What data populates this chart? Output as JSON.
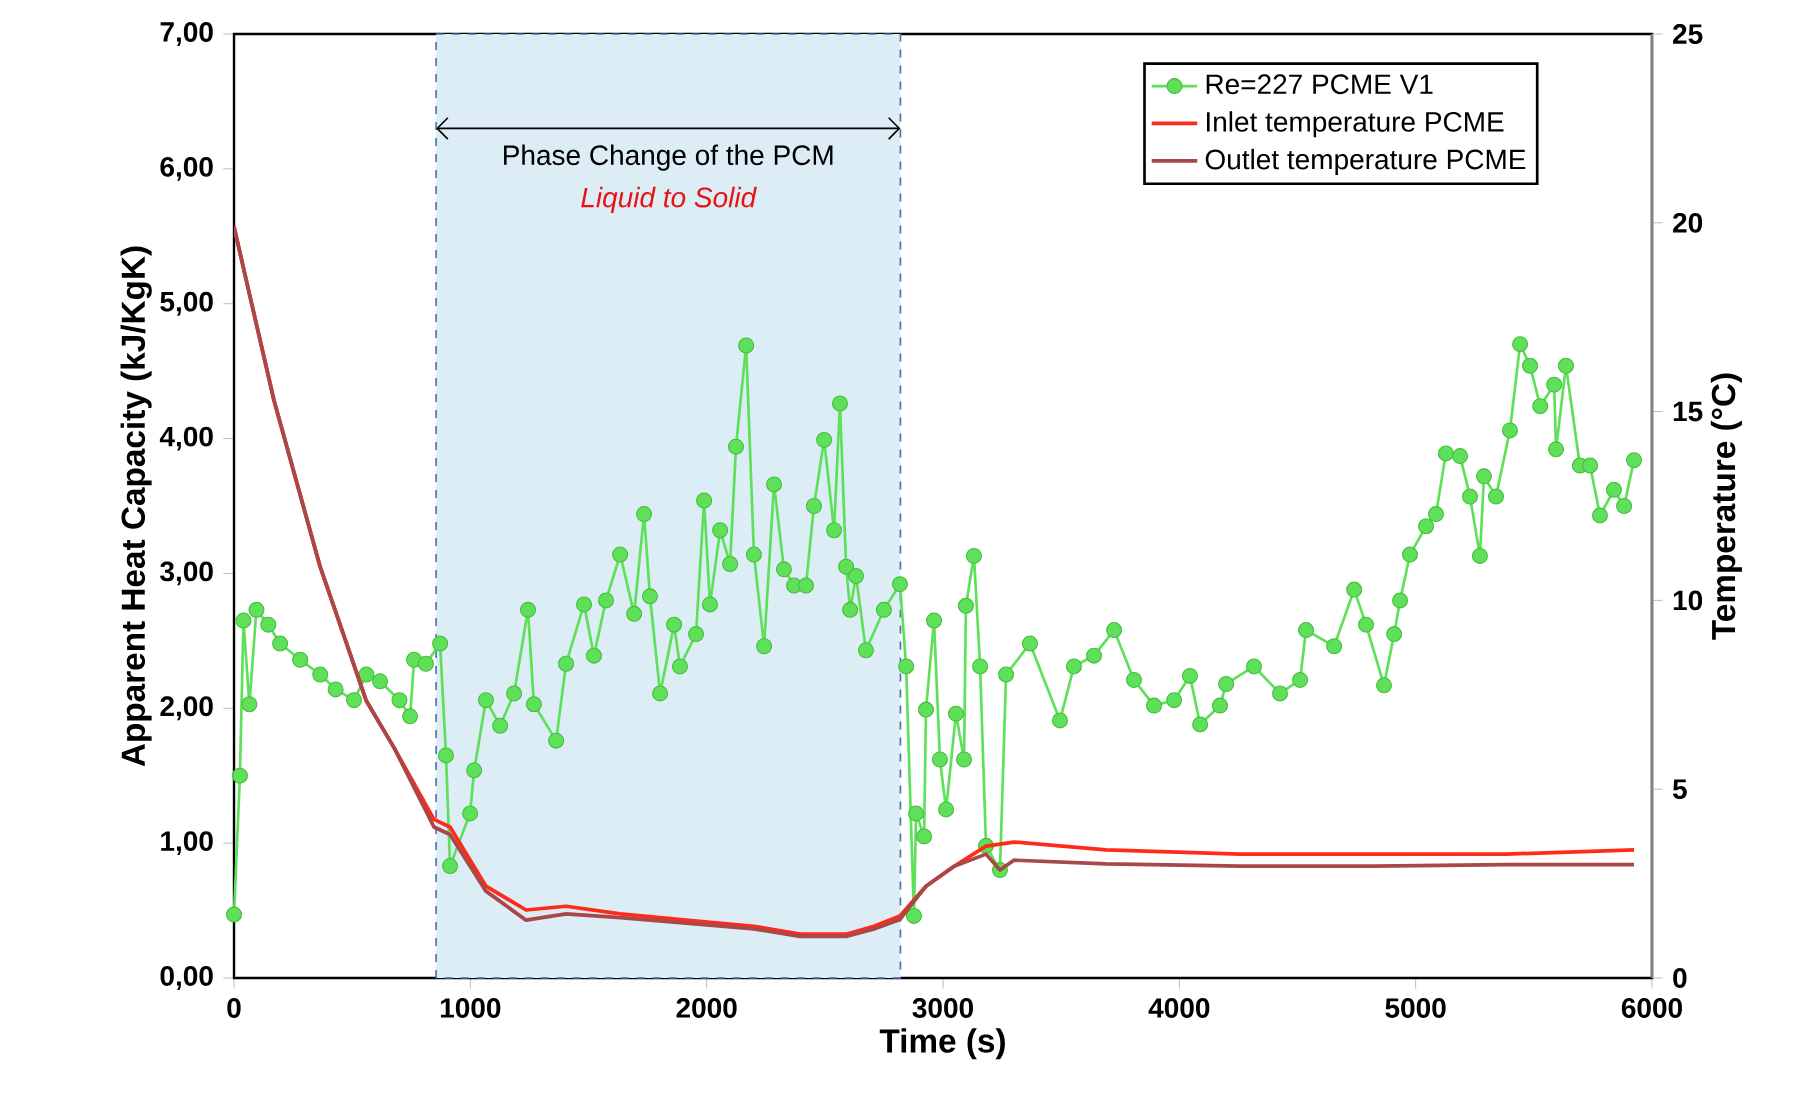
{
  "chart_data": {
    "type": "line",
    "xlabel": "Time (s)",
    "ylabel": "Apparent Heat Capacity (kJ/KgK)",
    "y2label": "Temperature  (°C)",
    "xlim": [
      0,
      6000
    ],
    "xticks": [
      0,
      1000,
      2000,
      3000,
      4000,
      5000,
      6000
    ],
    "ylim": [
      0,
      7
    ],
    "yticks": [
      {
        "value": 0,
        "label": "0,00"
      },
      {
        "value": 1,
        "label": "1,00"
      },
      {
        "value": 2,
        "label": "2,00"
      },
      {
        "value": 3,
        "label": "3,00"
      },
      {
        "value": 4,
        "label": "4,00"
      },
      {
        "value": 5,
        "label": "5,00"
      },
      {
        "value": 6,
        "label": "6,00"
      },
      {
        "value": 7,
        "label": "7,00"
      }
    ],
    "y2lim": [
      0,
      25
    ],
    "y2ticks": [
      0,
      5,
      10,
      15,
      20,
      25
    ],
    "legend": "top right",
    "bands": [
      {
        "axis": "x",
        "from": 855,
        "to": 2820,
        "label": "Phase Change of the PCM",
        "color": "#dcedf5"
      }
    ],
    "annotations": [
      "Liquid to Solid"
    ],
    "series": [
      {
        "name": "Re=227 PCME V1",
        "color": "#5fe05a",
        "marker": "circle",
        "x": [
          0,
          25,
          40,
          65,
          95,
          145,
          195,
          280,
          365,
          430,
          508,
          560,
          618,
          700,
          745,
          762,
          812,
          872,
          897,
          914,
          999,
          1016,
          1066,
          1126,
          1185,
          1244,
          1269,
          1363,
          1405,
          1481,
          1523,
          1574,
          1634,
          1693,
          1735,
          1760,
          1803,
          1862,
          1887,
          1955,
          1989,
          2014,
          2057,
          2099,
          2124,
          2167,
          2200,
          2243,
          2285,
          2327,
          2370,
          2420,
          2454,
          2497,
          2539,
          2564,
          2590,
          2607,
          2632,
          2674,
          2750,
          2818,
          2844,
          2877,
          2886,
          2920,
          2928,
          2962,
          2987,
          3013,
          3055,
          3089,
          3097,
          3131,
          3157,
          3182,
          3241,
          3267,
          3368,
          3495,
          3554,
          3639,
          3724,
          3808,
          3893,
          3978,
          4045,
          4088,
          4172,
          4198,
          4316,
          4426,
          4511,
          4536,
          4655,
          4740,
          4790,
          4866,
          4909,
          4934,
          4976,
          5044,
          5086,
          5128,
          5188,
          5230,
          5272,
          5289,
          5340,
          5399,
          5442,
          5484,
          5527,
          5586,
          5594,
          5636,
          5695,
          5738,
          5780,
          5839,
          5882,
          5924
        ],
        "values": [
          0.47,
          1.5,
          2.65,
          2.03,
          2.73,
          2.62,
          2.48,
          2.36,
          2.25,
          2.14,
          2.06,
          2.25,
          2.2,
          2.06,
          1.94,
          2.36,
          2.33,
          2.48,
          1.65,
          0.83,
          1.22,
          1.54,
          2.06,
          1.87,
          2.11,
          2.73,
          2.03,
          1.76,
          2.33,
          2.77,
          2.39,
          2.8,
          3.14,
          2.7,
          3.44,
          2.83,
          2.11,
          2.62,
          2.31,
          2.55,
          3.54,
          2.77,
          3.32,
          3.07,
          3.94,
          4.69,
          3.14,
          2.46,
          3.66,
          3.03,
          2.91,
          2.91,
          3.5,
          3.99,
          3.32,
          4.26,
          3.05,
          2.73,
          2.98,
          2.43,
          2.73,
          2.92,
          2.31,
          0.46,
          1.22,
          1.05,
          1.99,
          2.65,
          1.62,
          1.25,
          1.96,
          1.62,
          2.76,
          3.13,
          2.31,
          0.98,
          0.8,
          2.25,
          2.48,
          1.91,
          2.31,
          2.39,
          2.58,
          2.21,
          2.02,
          2.06,
          2.24,
          1.88,
          2.02,
          2.18,
          2.31,
          2.11,
          2.21,
          2.58,
          2.46,
          2.88,
          2.62,
          2.17,
          2.55,
          2.8,
          3.14,
          3.35,
          3.44,
          3.89,
          3.87,
          3.57,
          3.13,
          3.72,
          3.57,
          4.06,
          4.7,
          4.54,
          4.24,
          4.4,
          3.92,
          4.54,
          3.8,
          3.8,
          3.43,
          3.62,
          3.5,
          3.84
        ]
      },
      {
        "name": "Inlet temperature PCME",
        "color": "#ff2a1a",
        "marker": "none",
        "axis": "y2",
        "x": [
          0,
          51,
          169,
          364,
          559,
          677,
          846,
          914,
          1066,
          1236,
          1405,
          1634,
          1913,
          2200,
          2395,
          2590,
          2708,
          2818,
          2928,
          3047,
          3182,
          3300,
          3690,
          4257,
          4824,
          5383,
          5924
        ],
        "values": [
          19.9,
          18.5,
          15.3,
          10.9,
          7.35,
          6.1,
          4.2,
          4.0,
          2.43,
          1.8,
          1.9,
          1.7,
          1.53,
          1.37,
          1.16,
          1.16,
          1.37,
          1.64,
          2.43,
          2.96,
          3.49,
          3.6,
          3.39,
          3.28,
          3.28,
          3.28,
          3.39
        ]
      },
      {
        "name": "Outlet temperature PCME",
        "color": "#a84848",
        "marker": "none",
        "axis": "y2",
        "x": [
          0,
          51,
          169,
          364,
          559,
          677,
          846,
          914,
          1066,
          1236,
          1405,
          1634,
          1913,
          2200,
          2395,
          2590,
          2708,
          2818,
          2928,
          3047,
          3182,
          3241,
          3300,
          3690,
          4257,
          4824,
          5383,
          5924
        ],
        "values": [
          19.9,
          18.5,
          15.3,
          10.9,
          7.35,
          6.1,
          4.0,
          3.8,
          2.3,
          1.53,
          1.7,
          1.6,
          1.45,
          1.3,
          1.1,
          1.1,
          1.3,
          1.55,
          2.43,
          2.96,
          3.28,
          2.86,
          3.12,
          3.02,
          2.96,
          2.96,
          3.0,
          3.0
        ]
      }
    ]
  }
}
